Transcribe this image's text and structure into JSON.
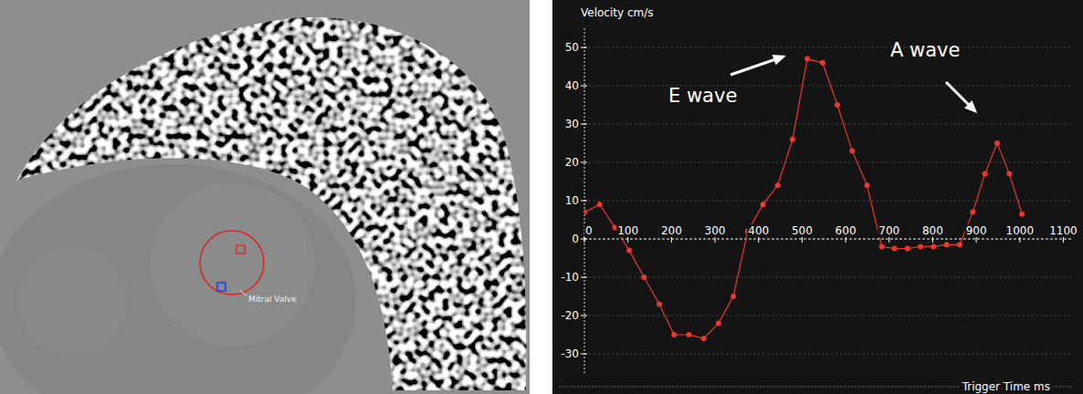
{
  "chart_data": {
    "type": "line",
    "x_label": "Trigger Time ms",
    "y_label": "Velocity cm/s",
    "annotations": [
      "E wave",
      "A wave"
    ],
    "x": [
      0,
      35,
      70,
      103,
      137,
      172,
      206,
      240,
      274,
      308,
      342,
      375,
      410,
      444,
      478,
      512,
      547,
      581,
      615,
      649,
      683,
      712,
      742,
      772,
      802,
      832,
      862,
      892,
      920,
      948,
      976,
      1005
    ],
    "series": [
      {
        "color": "#e8392f",
        "marker": "circle",
        "values": [
          7,
          9,
          3,
          -3,
          -10,
          -17,
          -25,
          -25,
          -26,
          -22,
          -15,
          2,
          9,
          14,
          26,
          47,
          46,
          35,
          23,
          14,
          -2,
          -2.5,
          -2.5,
          -2,
          -2,
          -1.5,
          -1.5,
          7,
          17,
          25,
          17,
          6.5
        ]
      }
    ],
    "xlim": [
      0,
      1120
    ],
    "ylim": [
      -35,
      55
    ],
    "xticks": [
      0,
      100,
      200,
      300,
      400,
      500,
      600,
      700,
      800,
      900,
      1000,
      1100
    ],
    "yticks": [
      -30,
      -20,
      -10,
      0,
      10,
      20,
      30,
      40,
      50
    ],
    "grid": true
  },
  "image": {
    "label": "Mitral Valve"
  }
}
